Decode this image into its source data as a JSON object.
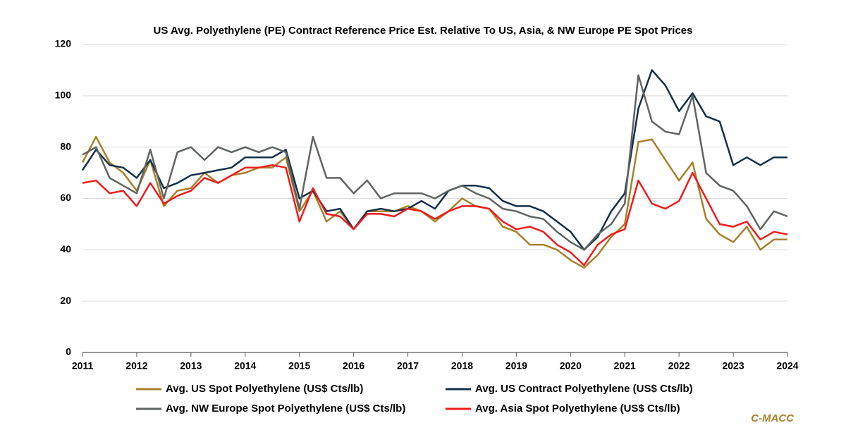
{
  "chart_data": {
    "type": "line",
    "title": "US Avg. Polyethylene (PE) Contract Reference Price Est. Relative To US, Asia, & NW Europe PE Spot Prices",
    "source": "C-MACC",
    "x": [
      2011,
      2011.25,
      2011.5,
      2011.75,
      2012,
      2012.25,
      2012.5,
      2012.75,
      2013,
      2013.25,
      2013.5,
      2013.75,
      2014,
      2014.25,
      2014.5,
      2014.75,
      2015,
      2015.25,
      2015.5,
      2015.75,
      2016,
      2016.25,
      2016.5,
      2016.75,
      2017,
      2017.25,
      2017.5,
      2017.75,
      2018,
      2018.25,
      2018.5,
      2018.75,
      2019,
      2019.25,
      2019.5,
      2019.75,
      2020,
      2020.25,
      2020.5,
      2020.75,
      2021,
      2021.25,
      2021.5,
      2021.75,
      2022,
      2022.25,
      2022.5,
      2022.75,
      2023,
      2023.25,
      2023.5,
      2023.75,
      2024
    ],
    "series": [
      {
        "name": "Avg. US Spot Polyethylene (US$ Cts/lb)",
        "color": "#a6802a",
        "values": [
          74,
          84,
          74,
          70,
          63,
          75,
          57,
          63,
          64,
          70,
          66,
          69,
          70,
          72,
          72,
          76,
          55,
          63,
          51,
          55,
          48,
          55,
          55,
          55,
          57,
          55,
          51,
          55,
          60,
          57,
          56,
          49,
          47,
          42,
          42,
          40,
          36,
          33,
          38,
          45,
          50,
          82,
          83,
          75,
          67,
          74,
          52,
          46,
          43,
          49,
          40,
          44,
          44
        ]
      },
      {
        "name": "Avg. US Contract Polyethylene (US$ Cts/lb)",
        "color": "#14304a",
        "values": [
          71,
          79,
          73,
          72,
          68,
          75,
          64,
          66,
          69,
          70,
          71,
          72,
          76,
          76,
          76,
          79,
          60,
          63,
          55,
          56,
          48,
          55,
          56,
          55,
          56,
          59,
          56,
          63,
          65,
          65,
          64,
          59,
          57,
          57,
          55,
          51,
          47,
          40,
          45,
          55,
          62,
          95,
          110,
          104,
          94,
          101,
          92,
          90,
          73,
          76,
          73,
          76,
          76
        ]
      },
      {
        "name": "Avg. NW Europe Spot Polyethylene (US$ Cts/lb)",
        "color": "#5f6461",
        "values": [
          77,
          80,
          68,
          65,
          62,
          79,
          60,
          78,
          80,
          75,
          80,
          78,
          80,
          78,
          80,
          78,
          56,
          84,
          68,
          68,
          62,
          67,
          60,
          62,
          62,
          62,
          60,
          63,
          65,
          62,
          60,
          56,
          55,
          53,
          52,
          47,
          43,
          40,
          46,
          50,
          58,
          108,
          90,
          86,
          85,
          100,
          70,
          65,
          63,
          57,
          48,
          55,
          53
        ]
      },
      {
        "name": "Avg. Asia Spot Polyethylene (US$ Cts/lb)",
        "color": "#ee1c1c",
        "values": [
          66,
          67,
          62,
          63,
          57,
          66,
          58,
          61,
          63,
          68,
          66,
          69,
          72,
          72,
          73,
          72,
          51,
          64,
          54,
          53,
          48,
          54,
          54,
          53,
          56,
          55,
          52,
          55,
          57,
          57,
          56,
          51,
          48,
          49,
          47,
          42,
          39,
          34,
          42,
          46,
          48,
          67,
          58,
          56,
          59,
          70,
          60,
          50,
          49,
          51,
          44,
          47,
          46
        ]
      }
    ],
    "xlim": [
      2011,
      2024
    ],
    "xticks": [
      2011,
      2012,
      2013,
      2014,
      2015,
      2016,
      2017,
      2018,
      2019,
      2020,
      2021,
      2022,
      2023,
      2024
    ],
    "ylim": [
      0,
      120
    ],
    "yticks": [
      0,
      20,
      40,
      60,
      80,
      100,
      120
    ],
    "grid": true
  }
}
